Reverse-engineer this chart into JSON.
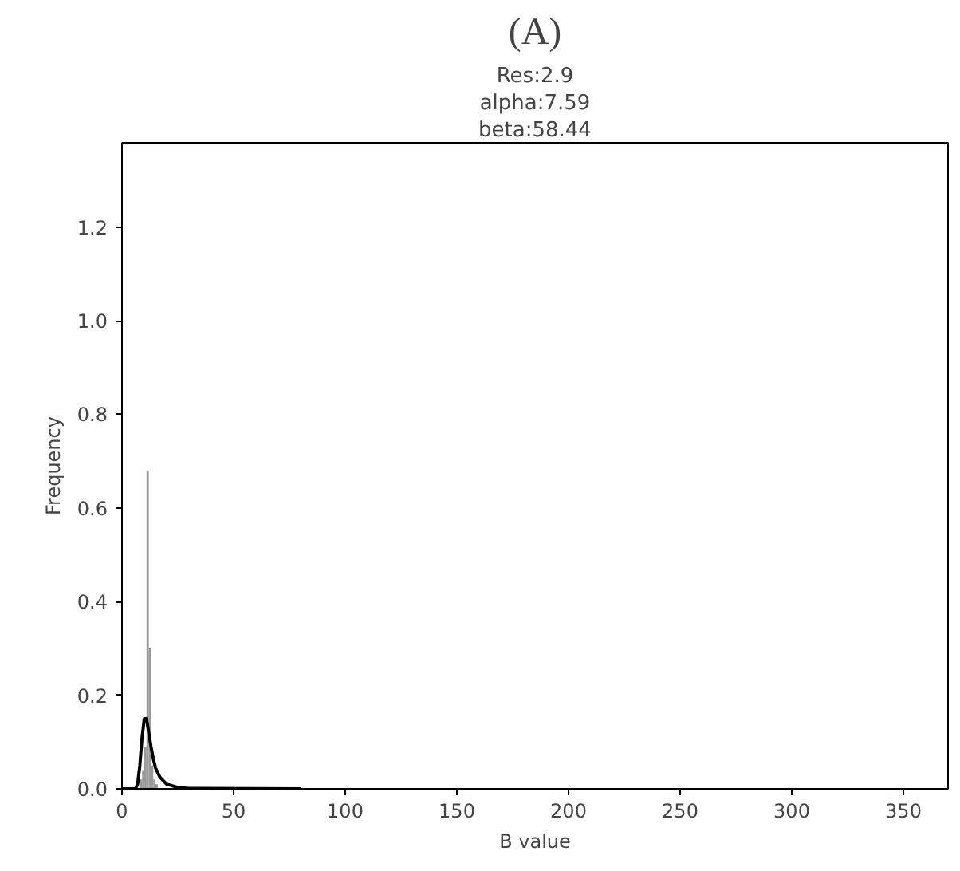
{
  "chart_data": {
    "type": "histogram",
    "title": "(A)",
    "annotations": [
      "Res:2.9",
      "alpha:7.59",
      "beta:58.44"
    ],
    "xlabel": "B value",
    "ylabel": "Frequency",
    "xlim": [
      0,
      370
    ],
    "xticks": [
      0,
      50,
      100,
      150,
      200,
      250,
      300,
      350
    ],
    "ylim": [
      0,
      1.38
    ],
    "yticks": [
      {
        "value": 0,
        "label": "0.0"
      },
      0.2,
      0.4,
      0.6,
      0.8,
      {
        "value": 1,
        "label": "1.0"
      },
      1.2
    ],
    "grid": false,
    "series": [
      {
        "color": "#999999",
        "bins": [
          8,
          9,
          10,
          11,
          12,
          13,
          14,
          15,
          16
        ],
        "values": [
          0.02,
          0.04,
          0.09,
          0.68,
          0.3,
          0.05,
          0.02,
          0.01
        ]
      },
      {
        "type": "line",
        "color": "#000000",
        "x": [
          0,
          6,
          7,
          8,
          9,
          10,
          11,
          12,
          13,
          14,
          15,
          17,
          20,
          25,
          30,
          80
        ],
        "values": [
          0,
          0,
          0.01,
          0.05,
          0.11,
          0.15,
          0.15,
          0.12,
          0.09,
          0.065,
          0.045,
          0.025,
          0.01,
          0.003,
          0.001,
          0
        ]
      }
    ]
  }
}
